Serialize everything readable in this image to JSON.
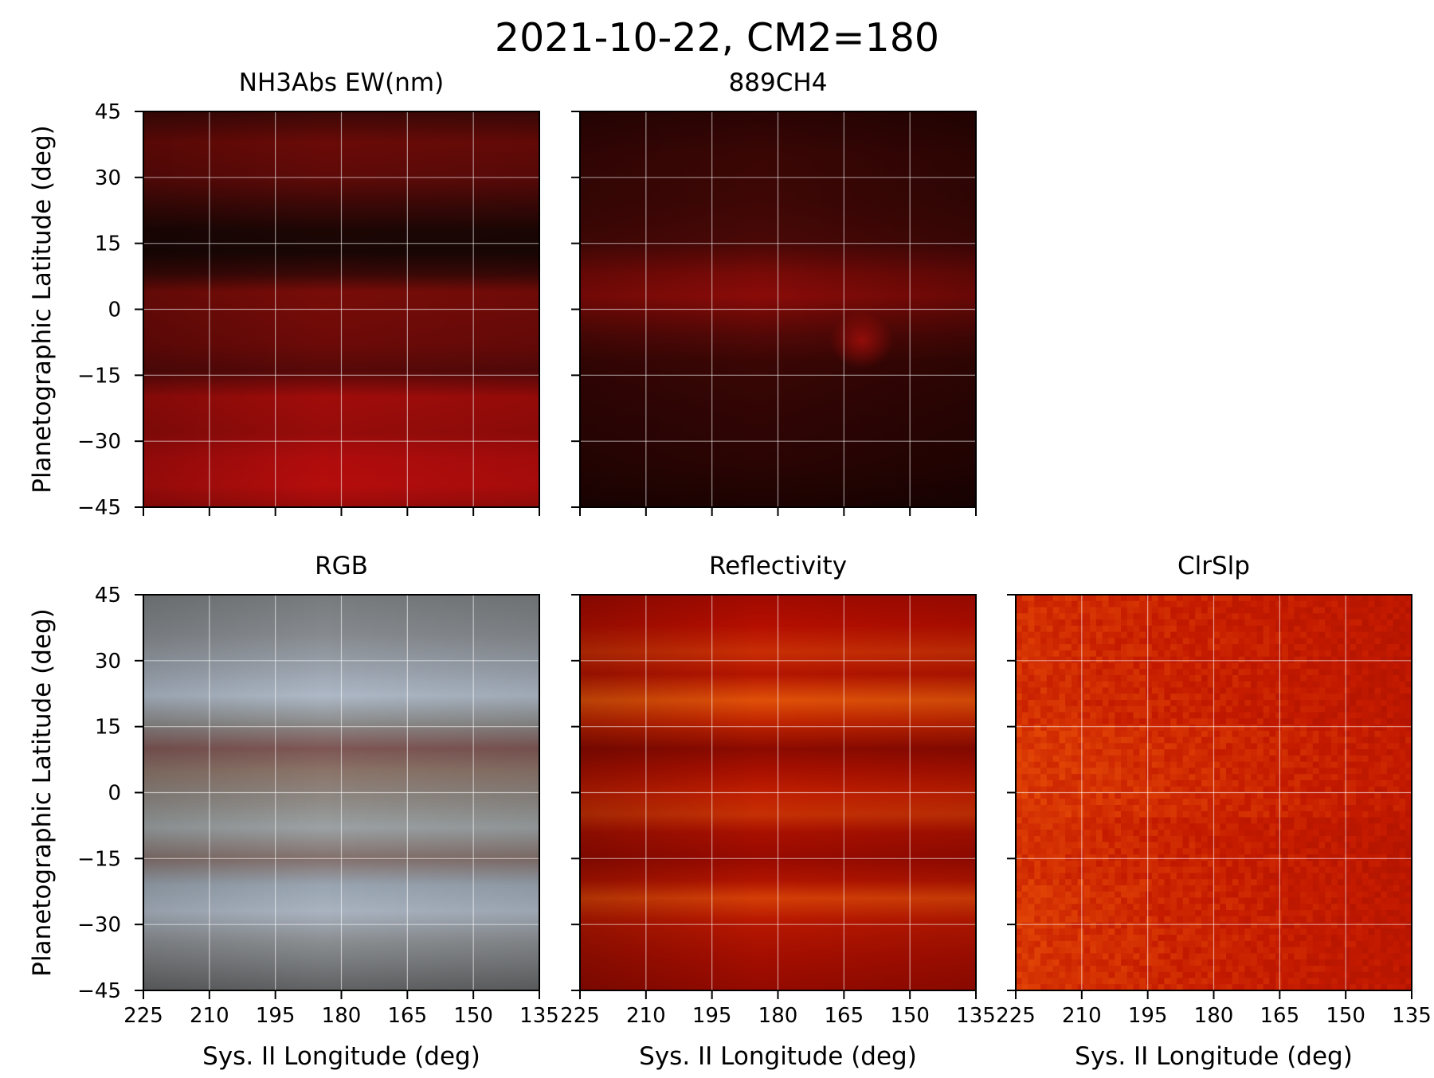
{
  "title": "2021-10-22, CM2=180",
  "x_label": "Sys. II Longitude (deg)",
  "y_label": "Planetographic Latitude (deg)",
  "x_ticks": [
    225,
    210,
    195,
    180,
    165,
    150,
    135
  ],
  "y_ticks": [
    45,
    30,
    15,
    0,
    -15,
    -30,
    -45
  ],
  "tick_texts": {
    "x": [
      "225",
      "210",
      "195",
      "180",
      "165",
      "150",
      "135"
    ],
    "y": [
      "45",
      "30",
      "15",
      "0",
      "−15",
      "−30",
      "−45"
    ]
  },
  "chart_data": [
    {
      "type": "heatmap",
      "id": "nh3abs",
      "title": "NH3Abs EW(nm)",
      "x_range": [
        225,
        135
      ],
      "y_range": [
        -45,
        45
      ],
      "grid": true,
      "colormap": "red-black",
      "bands": [
        {
          "lat": 45,
          "color": "#3a0806"
        },
        {
          "lat": 38,
          "color": "#6a0a07"
        },
        {
          "lat": 30,
          "color": "#5e0a08"
        },
        {
          "lat": 24,
          "color": "#3c0806"
        },
        {
          "lat": 18,
          "color": "#1c0604"
        },
        {
          "lat": 13,
          "color": "#180604"
        },
        {
          "lat": 8,
          "color": "#3a0806"
        },
        {
          "lat": 4,
          "color": "#780c08"
        },
        {
          "lat": -2,
          "color": "#720b08"
        },
        {
          "lat": -8,
          "color": "#6c0a08"
        },
        {
          "lat": -14,
          "color": "#560908"
        },
        {
          "lat": -20,
          "color": "#a00c0a"
        },
        {
          "lat": -28,
          "color": "#960c0a"
        },
        {
          "lat": -34,
          "color": "#b00c0c"
        },
        {
          "lat": -40,
          "color": "#b40d0c"
        },
        {
          "lat": -45,
          "color": "#9a0c0a"
        }
      ]
    },
    {
      "type": "heatmap",
      "id": "ch4",
      "title": "889CH4",
      "x_range": [
        225,
        135
      ],
      "y_range": [
        -45,
        45
      ],
      "grid": true,
      "colormap": "red-black",
      "bands": [
        {
          "lat": 45,
          "color": "#2a0403"
        },
        {
          "lat": 35,
          "color": "#3a0604"
        },
        {
          "lat": 25,
          "color": "#3e0705"
        },
        {
          "lat": 15,
          "color": "#4a0806"
        },
        {
          "lat": 8,
          "color": "#7a0a07"
        },
        {
          "lat": 3,
          "color": "#8a0b08"
        },
        {
          "lat": -2,
          "color": "#6a0906"
        },
        {
          "lat": -6,
          "color": "#520806"
        },
        {
          "lat": -12,
          "color": "#3a0604"
        },
        {
          "lat": -25,
          "color": "#300504"
        },
        {
          "lat": -35,
          "color": "#2a0403"
        },
        {
          "lat": -45,
          "color": "#1c0302"
        }
      ]
    },
    {
      "type": "heatmap",
      "id": "rgb",
      "title": "RGB",
      "x_range": [
        225,
        135
      ],
      "y_range": [
        -45,
        45
      ],
      "grid": true,
      "colormap": "rgb-composite",
      "bands": [
        {
          "lat": 45,
          "color": "#777a7c"
        },
        {
          "lat": 36,
          "color": "#868a8e"
        },
        {
          "lat": 28,
          "color": "#9ba3ae"
        },
        {
          "lat": 22,
          "color": "#adb8c6"
        },
        {
          "lat": 16,
          "color": "#8c8c8c"
        },
        {
          "lat": 10,
          "color": "#7e5654"
        },
        {
          "lat": 5,
          "color": "#8a7368"
        },
        {
          "lat": -2,
          "color": "#8e8a86"
        },
        {
          "lat": -8,
          "color": "#9ba1a3"
        },
        {
          "lat": -15,
          "color": "#83706c"
        },
        {
          "lat": -21,
          "color": "#98a4b0"
        },
        {
          "lat": -27,
          "color": "#a9b3c0"
        },
        {
          "lat": -34,
          "color": "#8a8d90"
        },
        {
          "lat": -45,
          "color": "#5f6163"
        }
      ]
    },
    {
      "type": "heatmap",
      "id": "reflectivity",
      "title": "Reflectivity",
      "x_range": [
        225,
        135
      ],
      "y_range": [
        -45,
        45
      ],
      "grid": true,
      "colormap": "red-orange",
      "bands": [
        {
          "lat": 45,
          "color": "#a00a00"
        },
        {
          "lat": 38,
          "color": "#b40e00"
        },
        {
          "lat": 32,
          "color": "#c82e04"
        },
        {
          "lat": 27,
          "color": "#b41400"
        },
        {
          "lat": 21,
          "color": "#e05008"
        },
        {
          "lat": 16,
          "color": "#c02400"
        },
        {
          "lat": 10,
          "color": "#8c0a00"
        },
        {
          "lat": 5,
          "color": "#a81000"
        },
        {
          "lat": 0,
          "color": "#c01e00"
        },
        {
          "lat": -5,
          "color": "#c63004"
        },
        {
          "lat": -9,
          "color": "#a81000"
        },
        {
          "lat": -15,
          "color": "#980a00"
        },
        {
          "lat": -20,
          "color": "#b01400"
        },
        {
          "lat": -24,
          "color": "#d43e06"
        },
        {
          "lat": -29,
          "color": "#b81800"
        },
        {
          "lat": -37,
          "color": "#a40e00"
        },
        {
          "lat": -45,
          "color": "#940a00"
        }
      ]
    },
    {
      "type": "heatmap",
      "id": "clrslp",
      "title": "ClrSlp",
      "x_range": [
        225,
        135
      ],
      "y_range": [
        -45,
        45
      ],
      "grid": true,
      "colormap": "red-orange-noisy",
      "base_color": "#c41a00",
      "warm_color": "#f05808",
      "cool_color": "#9a0c00"
    }
  ]
}
